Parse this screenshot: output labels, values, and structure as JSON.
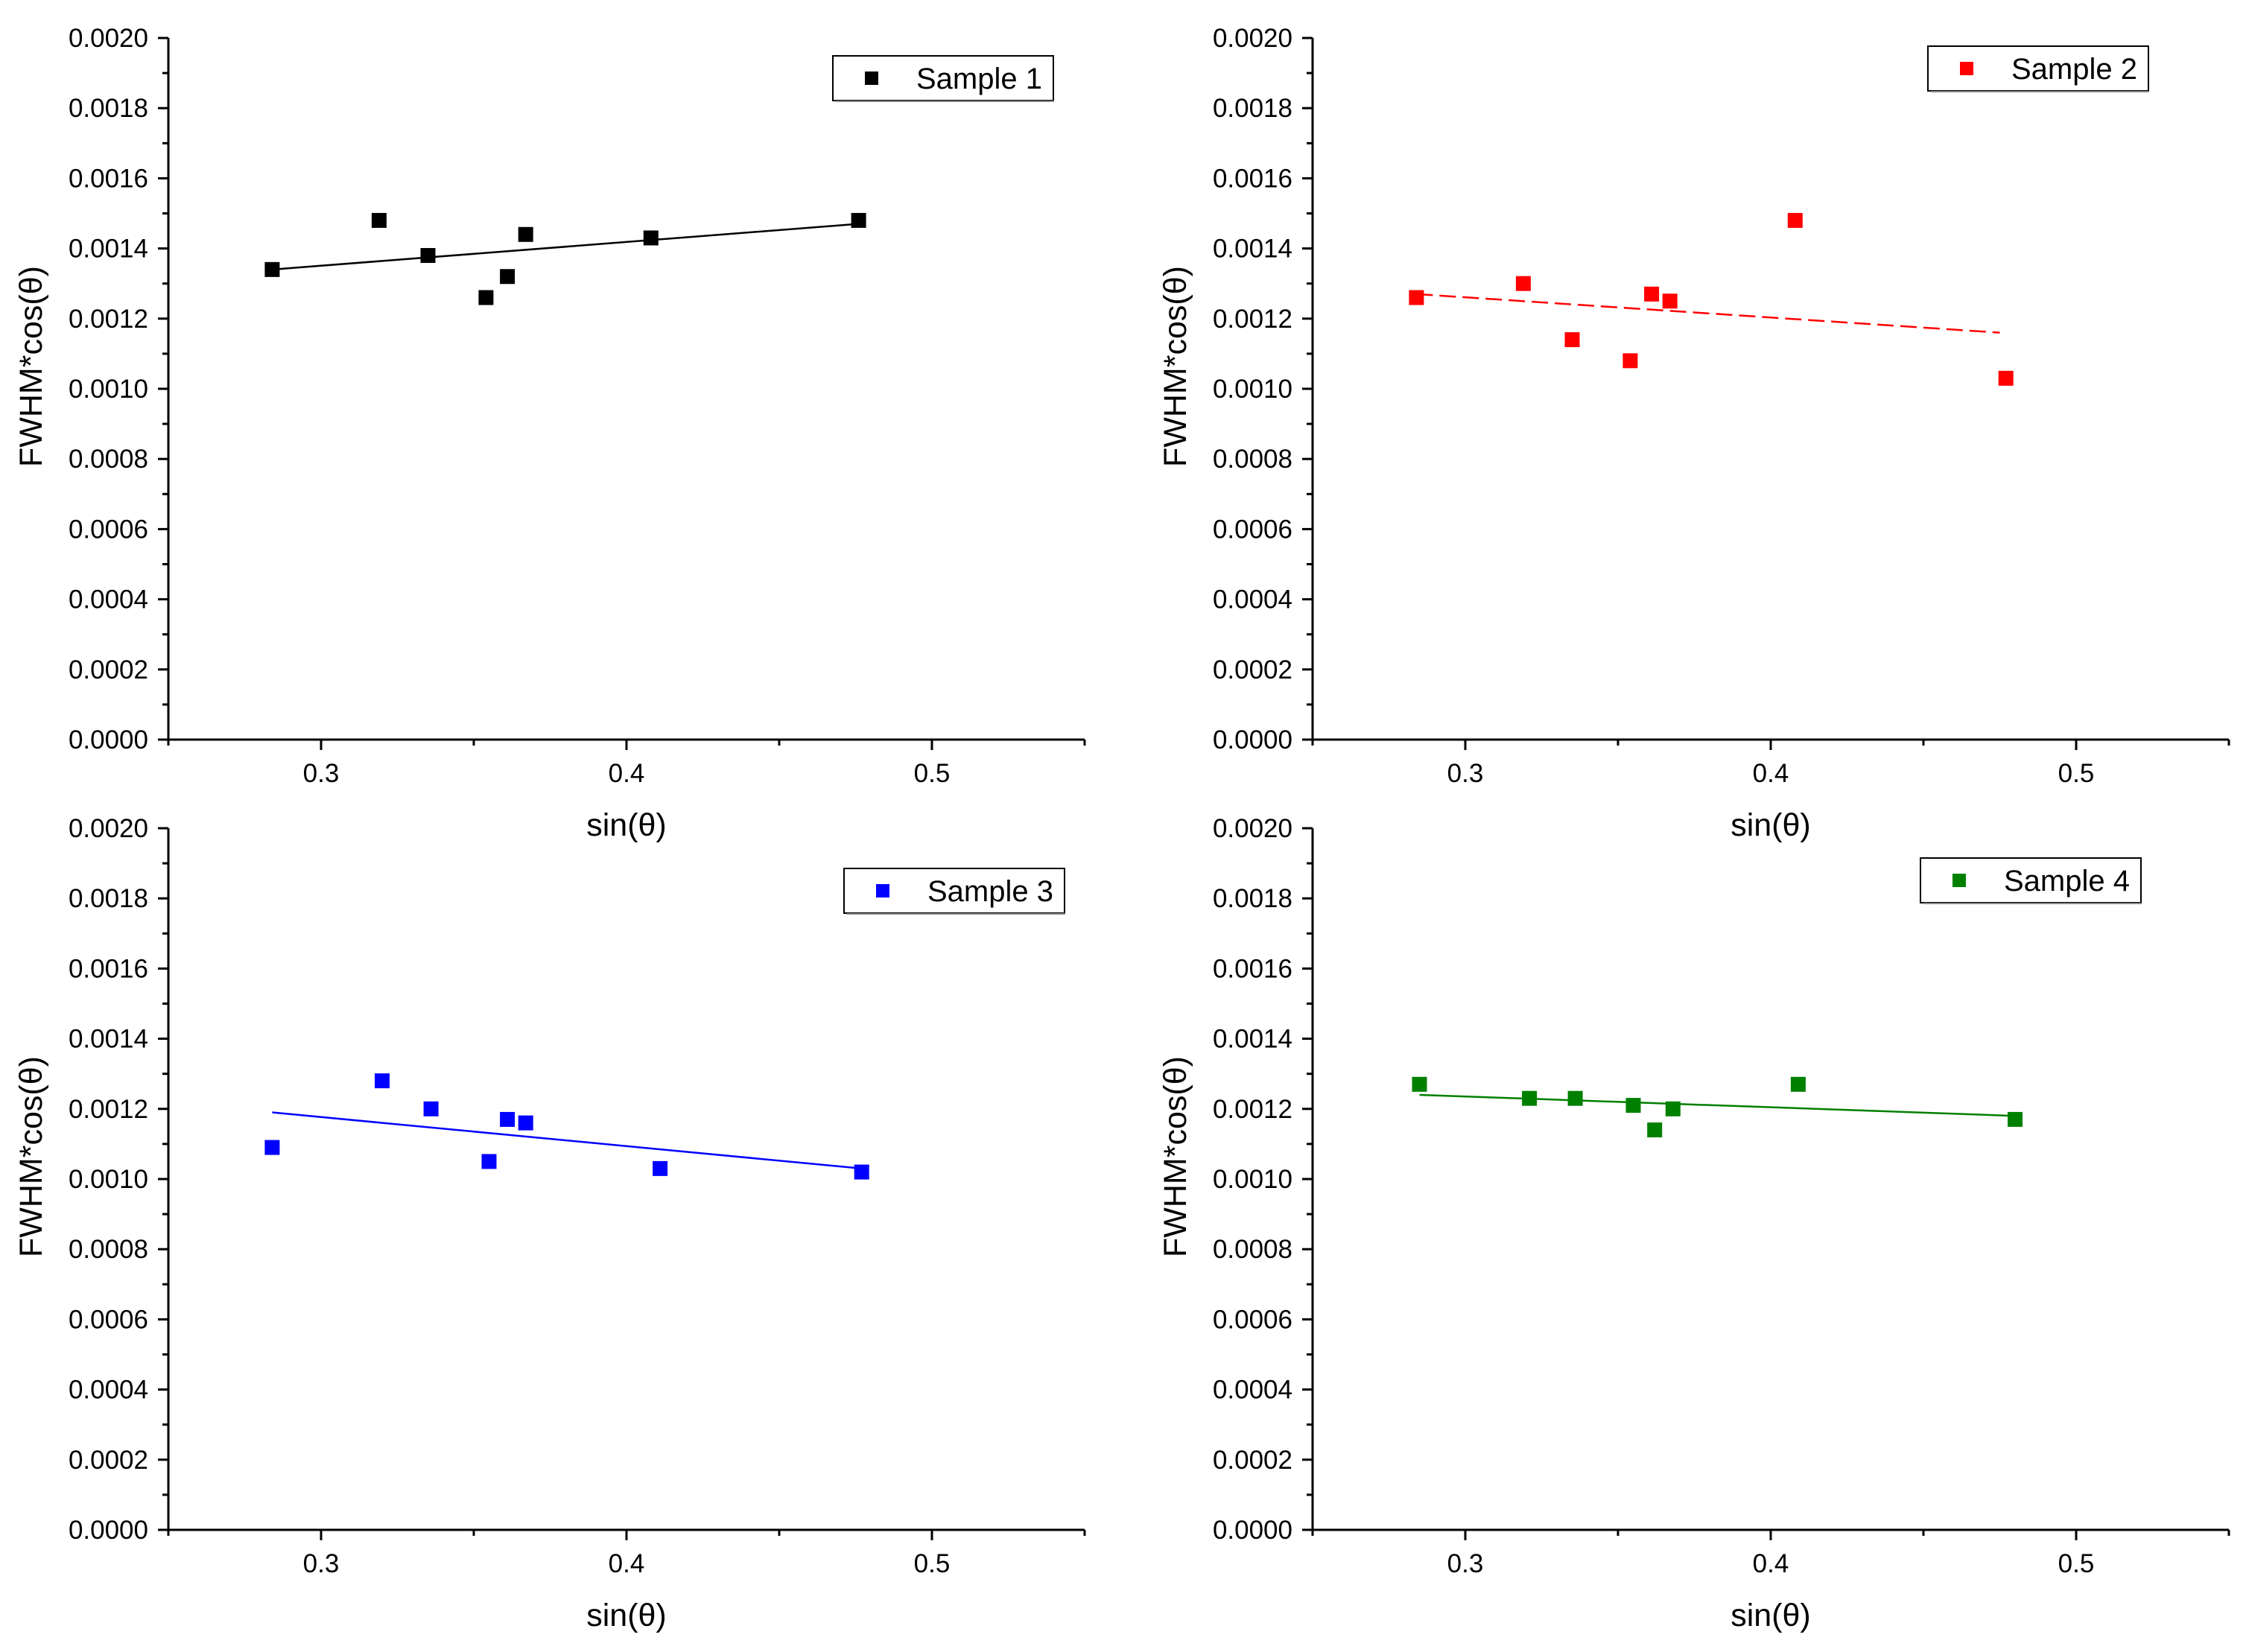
{
  "chart_data": [
    {
      "type": "scatter",
      "title": "",
      "xlabel": "sin(θ)",
      "ylabel": "FWHM*cos(θ)",
      "xlim": [
        0.25,
        0.55
      ],
      "ylim": [
        0,
        0.002
      ],
      "xticks": [
        0.3,
        0.4,
        0.5
      ],
      "xtick_labels": [
        "0.3",
        "0.4",
        "0.5"
      ],
      "yticks": [
        0,
        0.0002,
        0.0004,
        0.0006,
        0.0008,
        0.001,
        0.0012,
        0.0014,
        0.0016,
        0.0018,
        0.002
      ],
      "ytick_labels": [
        "0.0000",
        "0.0002",
        "0.0004",
        "0.0006",
        "0.0008",
        "0.0010",
        "0.0012",
        "0.0014",
        "0.0016",
        "0.0018",
        "0.0020"
      ],
      "grid": false,
      "legend_position": "top-right",
      "series": [
        {
          "name": "Sample 1",
          "color": "#000000",
          "x": [
            0.284,
            0.319,
            0.335,
            0.354,
            0.361,
            0.367,
            0.408,
            0.476
          ],
          "y": [
            0.00134,
            0.00148,
            0.00138,
            0.00126,
            0.00132,
            0.00144,
            0.00143,
            0.00148
          ],
          "fit": {
            "x": [
              0.284,
              0.476
            ],
            "y": [
              0.00134,
              0.00147
            ],
            "dash": "solid"
          }
        }
      ]
    },
    {
      "type": "scatter",
      "title": "",
      "xlabel": "sin(θ)",
      "ylabel": "FWHM*cos(θ)",
      "xlim": [
        0.25,
        0.55
      ],
      "ylim": [
        0,
        0.002
      ],
      "xticks": [
        0.3,
        0.4,
        0.5
      ],
      "xtick_labels": [
        "0.3",
        "0.4",
        "0.5"
      ],
      "yticks": [
        0,
        0.0002,
        0.0004,
        0.0006,
        0.0008,
        0.001,
        0.0012,
        0.0014,
        0.0016,
        0.0018,
        0.002
      ],
      "ytick_labels": [
        "0.0000",
        "0.0002",
        "0.0004",
        "0.0006",
        "0.0008",
        "0.0010",
        "0.0012",
        "0.0014",
        "0.0016",
        "0.0018",
        "0.0020"
      ],
      "grid": false,
      "legend_position": "top-right",
      "series": [
        {
          "name": "Sample 2",
          "color": "#ff0000",
          "x": [
            0.284,
            0.319,
            0.335,
            0.354,
            0.361,
            0.367,
            0.408,
            0.477
          ],
          "y": [
            0.00126,
            0.0013,
            0.00114,
            0.00108,
            0.00127,
            0.00125,
            0.00148,
            0.00103
          ],
          "fit": {
            "x": [
              0.284,
              0.475
            ],
            "y": [
              0.00127,
              0.00116
            ],
            "dash": "dashed"
          }
        }
      ]
    },
    {
      "type": "scatter",
      "title": "",
      "xlabel": "sin(θ)",
      "ylabel": "FWHM*cos(θ)",
      "xlim": [
        0.25,
        0.55
      ],
      "ylim": [
        0,
        0.002
      ],
      "xticks": [
        0.3,
        0.4,
        0.5
      ],
      "xtick_labels": [
        "0.3",
        "0.4",
        "0.5"
      ],
      "yticks": [
        0,
        0.0002,
        0.0004,
        0.0006,
        0.0008,
        0.001,
        0.0012,
        0.0014,
        0.0016,
        0.0018,
        0.002
      ],
      "ytick_labels": [
        "0.0000",
        "0.0002",
        "0.0004",
        "0.0006",
        "0.0008",
        "0.0010",
        "0.0012",
        "0.0014",
        "0.0016",
        "0.0018",
        "0.0020"
      ],
      "grid": false,
      "legend_position": "top-right",
      "series": [
        {
          "name": "Sample 3",
          "color": "#0000ff",
          "x": [
            0.284,
            0.32,
            0.336,
            0.355,
            0.361,
            0.367,
            0.411,
            0.477
          ],
          "y": [
            0.00109,
            0.00128,
            0.0012,
            0.00105,
            0.00117,
            0.00116,
            0.00103,
            0.00102
          ],
          "fit": {
            "x": [
              0.284,
              0.477
            ],
            "y": [
              0.00119,
              0.00103
            ],
            "dash": "solid"
          }
        }
      ]
    },
    {
      "type": "scatter",
      "title": "",
      "xlabel": "sin(θ)",
      "ylabel": "FWHM*cos(θ)",
      "xlim": [
        0.25,
        0.55
      ],
      "ylim": [
        0,
        0.002
      ],
      "xticks": [
        0.3,
        0.4,
        0.5
      ],
      "xtick_labels": [
        "0.3",
        "0.4",
        "0.5"
      ],
      "yticks": [
        0,
        0.0002,
        0.0004,
        0.0006,
        0.0008,
        0.001,
        0.0012,
        0.0014,
        0.0016,
        0.0018,
        0.002
      ],
      "ytick_labels": [
        "0.0000",
        "0.0002",
        "0.0004",
        "0.0006",
        "0.0008",
        "0.0010",
        "0.0012",
        "0.0014",
        "0.0016",
        "0.0018",
        "0.0020"
      ],
      "grid": false,
      "legend_position": "top-right",
      "series": [
        {
          "name": "Sample 4",
          "color": "#008000",
          "x": [
            0.285,
            0.321,
            0.336,
            0.355,
            0.362,
            0.368,
            0.409,
            0.48
          ],
          "y": [
            0.00127,
            0.00123,
            0.00123,
            0.00121,
            0.00114,
            0.0012,
            0.00127,
            0.00117
          ],
          "fit": {
            "x": [
              0.285,
              0.48
            ],
            "y": [
              0.00124,
              0.00118
            ],
            "dash": "solid"
          }
        }
      ]
    }
  ]
}
